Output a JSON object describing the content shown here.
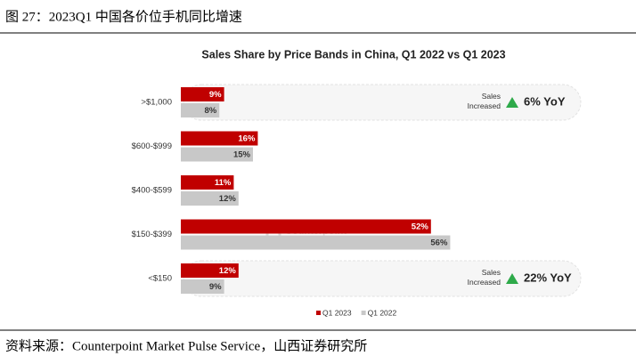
{
  "caption": "图 27：2023Q1 中国各价位手机同比增速",
  "source": "资料来源：Counterpoint Market Pulse Service，山西证券研究所",
  "chart_data": {
    "type": "bar",
    "orientation": "horizontal",
    "title": "Sales Share by Price Bands in China, Q1 2022 vs Q1 2023",
    "categories": [
      ">$1,000",
      "$600-$999",
      "$400-$599",
      "$150-$399",
      "<$150"
    ],
    "series": [
      {
        "name": "Q1 2023",
        "color": "#c00000",
        "values": [
          9,
          16,
          11,
          52,
          12
        ],
        "value_labels": [
          "9%",
          "16%",
          "11%",
          "52%",
          "12%"
        ]
      },
      {
        "name": "Q1 2022",
        "color": "#c8c8c8",
        "values": [
          8,
          15,
          12,
          56,
          9
        ],
        "value_labels": [
          "8%",
          "15%",
          "12%",
          "56%",
          "9%"
        ]
      }
    ],
    "annotations": [
      {
        "category": ">$1,000",
        "text": "Sales Increased",
        "value": 6,
        "value_label": "6% YoY"
      },
      {
        "category": "<$150",
        "text": "Sales Increased",
        "value": 22,
        "value_label": "22% YoY"
      }
    ],
    "watermark": {
      "title": "Counterpoint",
      "subtitle": "Technology Market Research"
    },
    "legend": "bottom"
  }
}
